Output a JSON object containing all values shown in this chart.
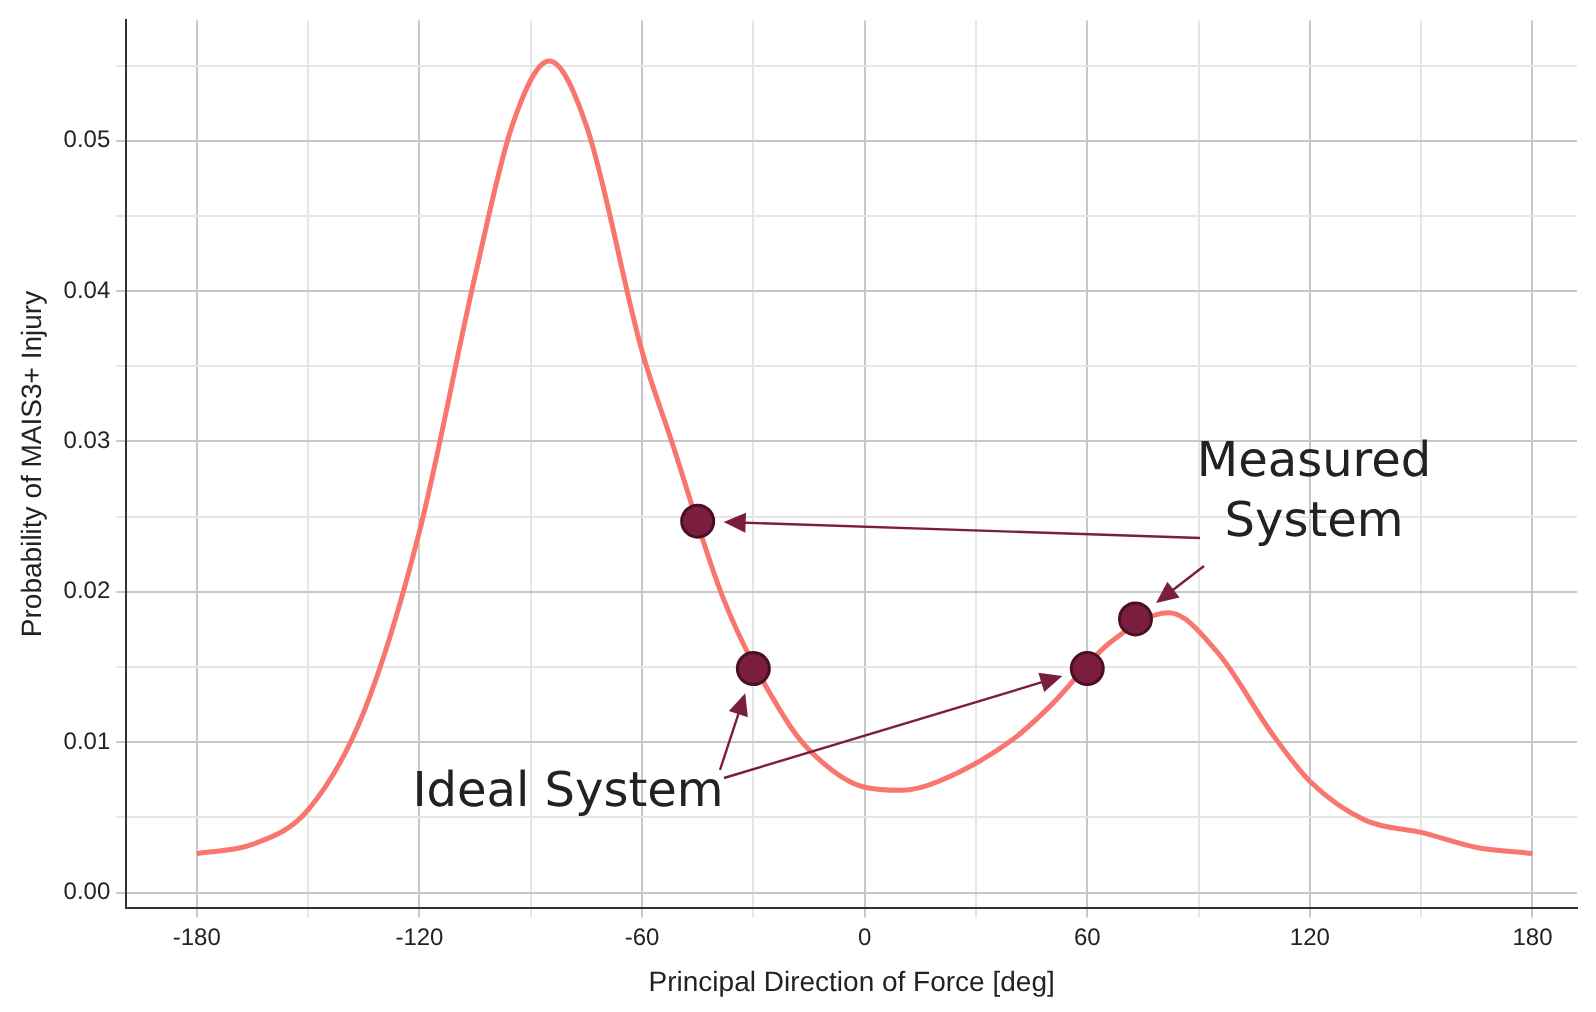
{
  "chart_data": {
    "type": "line",
    "xlabel": "Principal Direction of Force [deg]",
    "ylabel": "Probability of MAIS3+ Injury",
    "xlim": [
      -199,
      192
    ],
    "ylim": [
      -0.001,
      0.058
    ],
    "xticks": [
      -180,
      {
        "value": -150,
        "label": null
      },
      -120,
      {
        "value": -90,
        "label": null
      },
      -60,
      {
        "value": -30,
        "label": null
      },
      0,
      {
        "value": 30,
        "label": null
      },
      60,
      {
        "value": 90,
        "label": null
      },
      120,
      {
        "value": 150,
        "label": null
      },
      180
    ],
    "yticks": [
      {
        "value": 0,
        "label": "0.00"
      },
      {
        "value": 0.005,
        "label": null
      },
      {
        "value": 0.01,
        "label": "0.01"
      },
      {
        "value": 0.015,
        "label": null
      },
      {
        "value": 0.02,
        "label": "0.02"
      },
      {
        "value": 0.025,
        "label": null
      },
      {
        "value": 0.03,
        "label": "0.03"
      },
      {
        "value": 0.035,
        "label": null
      },
      {
        "value": 0.04,
        "label": "0.04"
      },
      {
        "value": 0.045,
        "label": null
      },
      {
        "value": 0.05,
        "label": "0.05"
      },
      {
        "value": 0.055,
        "label": null
      }
    ],
    "grid": true,
    "legend": false,
    "series": [
      {
        "type": "line",
        "color": "#f8766d",
        "marker": "none",
        "x": [
          -180,
          -165,
          -150,
          -135,
          -120,
          -105,
          -95,
          -85,
          -75,
          -60,
          -52,
          -38,
          -22,
          -15,
          0,
          10,
          20,
          40,
          50,
          66,
          82,
          95,
          110,
          120,
          135,
          150,
          165,
          180
        ],
        "values": [
          0.0026,
          0.0032,
          0.0055,
          0.012,
          0.024,
          0.041,
          0.051,
          0.0553,
          0.051,
          0.036,
          0.03,
          0.0195,
          0.0118,
          0.0095,
          0.007,
          0.0068,
          0.0074,
          0.0102,
          0.0124,
          0.0166,
          0.0186,
          0.016,
          0.0105,
          0.0074,
          0.0048,
          0.004,
          0.003,
          0.0026
        ]
      },
      {
        "type": "scatter",
        "color": "#7b1d3f",
        "marker": "circle",
        "x": [
          -45,
          -30,
          60,
          73
        ],
        "values": [
          0.0247,
          0.0149,
          0.0149,
          0.0182
        ]
      }
    ],
    "annotations": [
      "Measured\nSystem",
      "Ideal System"
    ]
  }
}
